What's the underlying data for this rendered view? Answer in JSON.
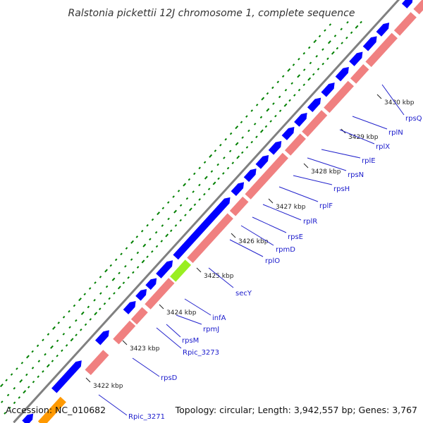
{
  "title": "Ralstonia pickettii 12J chromosome 1, complete sequence",
  "footer": {
    "accession": "Accession: NC_010682",
    "summary": "Topology: circular; Length: 3,942,557 bp; Genes: 3,767"
  },
  "colors": {
    "backbone": "#808080",
    "forward_cds": "#0000ff",
    "reverse_gene": "#f08080",
    "secY": "#99ee22",
    "Rpic_3271": "#ff9900",
    "label_line": "#2222cc",
    "gc_dots": "#008000"
  },
  "ticks": [
    {
      "id": "t3422",
      "label": "3422 kbp"
    },
    {
      "id": "t3423",
      "label": "3423 kbp"
    },
    {
      "id": "t3424",
      "label": "3424 kbp"
    },
    {
      "id": "t3425",
      "label": "3425 kbp"
    },
    {
      "id": "t3426",
      "label": "3426 kbp"
    },
    {
      "id": "t3427",
      "label": "3427 kbp"
    },
    {
      "id": "t3428",
      "label": "3428 kbp"
    },
    {
      "id": "t3429",
      "label": "3429 kbp"
    },
    {
      "id": "t3430",
      "label": "3430 kbp"
    }
  ],
  "genes": [
    {
      "id": "g_Rpic_3271",
      "label": "Rpic_3271"
    },
    {
      "id": "g_rpsD",
      "label": "rpsD"
    },
    {
      "id": "g_Rpic_3273",
      "label": "Rpic_3273"
    },
    {
      "id": "g_rpsM",
      "label": "rpsM"
    },
    {
      "id": "g_rpmJ",
      "label": "rpmJ"
    },
    {
      "id": "g_infA",
      "label": "infA"
    },
    {
      "id": "g_secY",
      "label": "secY"
    },
    {
      "id": "g_rplO",
      "label": "rplO"
    },
    {
      "id": "g_rpmD",
      "label": "rpmD"
    },
    {
      "id": "g_rpsE",
      "label": "rpsE"
    },
    {
      "id": "g_rplR",
      "label": "rplR"
    },
    {
      "id": "g_rplF",
      "label": "rplF"
    },
    {
      "id": "g_rpsH",
      "label": "rpsH"
    },
    {
      "id": "g_rpsN",
      "label": "rpsN"
    },
    {
      "id": "g_rplE",
      "label": "rplE"
    },
    {
      "id": "g_rplX",
      "label": "rplX"
    },
    {
      "id": "g_rplN",
      "label": "rplN"
    },
    {
      "id": "g_rpsQ",
      "label": "rpsQ"
    }
  ]
}
